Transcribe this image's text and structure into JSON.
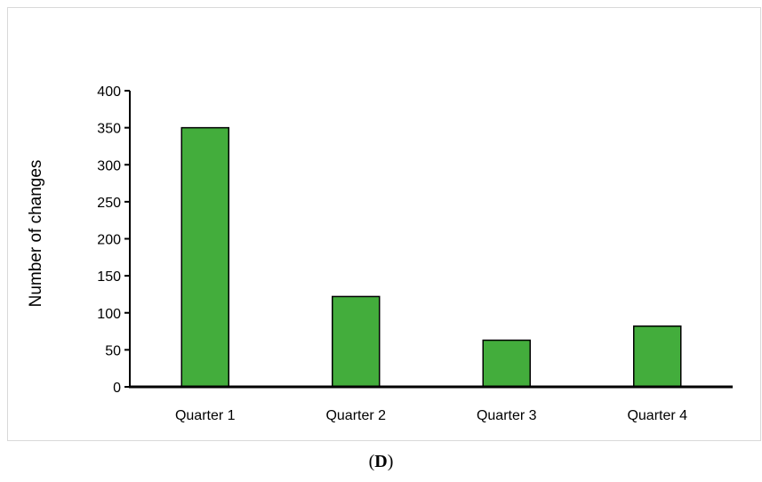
{
  "panel": {
    "paren_open": "(",
    "letter": "D",
    "paren_close": ")"
  },
  "colors": {
    "bar_fill": "#43ad3c",
    "bar_stroke": "#000000",
    "axis": "#000000",
    "frame_border": "#d9d9d9"
  },
  "chart_data": {
    "type": "bar",
    "title": "",
    "xlabel": "",
    "ylabel": "Number of changes",
    "categories": [
      "Quarter 1",
      "Quarter 2",
      "Quarter 3",
      "Quarter 4"
    ],
    "values": [
      350,
      122,
      63,
      82
    ],
    "ylim": [
      0,
      400
    ],
    "yticks": [
      0,
      50,
      100,
      150,
      200,
      250,
      300,
      350,
      400
    ],
    "grid": false,
    "legend": "none"
  }
}
